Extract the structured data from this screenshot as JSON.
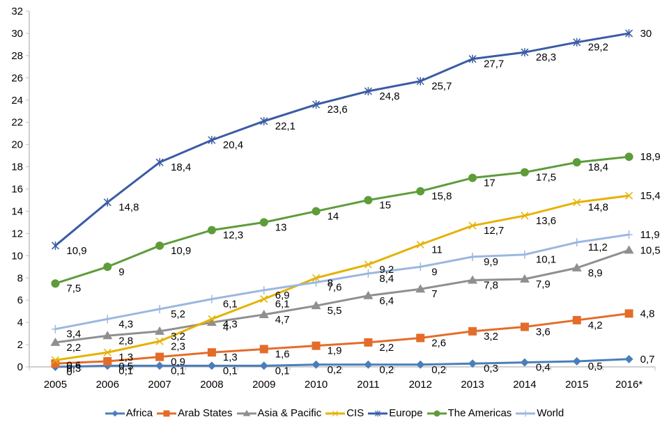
{
  "chart_data": {
    "type": "line",
    "title": "",
    "xlabel": "",
    "ylabel": "",
    "x": [
      "2005",
      "2006",
      "2007",
      "2008",
      "2009",
      "2010",
      "2011",
      "2012",
      "2013",
      "2014",
      "2015",
      "2016*"
    ],
    "ylim": [
      0,
      32
    ],
    "yticks": [
      "0",
      "2",
      "4",
      "6",
      "8",
      "10",
      "12",
      "14",
      "16",
      "18",
      "20",
      "22",
      "24",
      "26",
      "28",
      "30",
      "32"
    ],
    "grid": false,
    "legend_position": "bottom",
    "series": [
      {
        "name": "Africa",
        "color": "#4a7ebb",
        "marker": "diamond",
        "values": [
          0,
          0.1,
          0.1,
          0.1,
          0.1,
          0.2,
          0.2,
          0.2,
          0.3,
          0.4,
          0.5,
          0.7
        ],
        "labels": [
          "0",
          "0,1",
          "0,1",
          "0,1",
          "0,1",
          "0,2",
          "0,2",
          "0,2",
          "0,3",
          "0,4",
          "0,5",
          "0,7"
        ]
      },
      {
        "name": "Arab States",
        "color": "#e46c29",
        "marker": "square",
        "values": [
          0.3,
          0.5,
          0.9,
          1.3,
          1.6,
          1.9,
          2.2,
          2.6,
          3.2,
          3.6,
          4.2,
          4.8
        ],
        "labels": [
          "0,3",
          "0,5",
          "0,9",
          "1,3",
          "1,6",
          "1,9",
          "2,2",
          "2,6",
          "3,2",
          "3,6",
          "4,2",
          "4,8"
        ]
      },
      {
        "name": "Asia & Pacific",
        "color": "#8f8f8f",
        "marker": "triangle",
        "values": [
          2.2,
          2.8,
          3.2,
          4,
          4.7,
          5.5,
          6.4,
          7,
          7.8,
          7.9,
          8.9,
          10.5
        ],
        "labels": [
          "2,2",
          "2,8",
          "3,2",
          "4",
          "4,7",
          "5,5",
          "6,4",
          "7",
          "7,8",
          "7,9",
          "8,9",
          "10,5"
        ]
      },
      {
        "name": "CIS",
        "color": "#e6b100",
        "marker": "x",
        "values": [
          0.6,
          1.3,
          2.3,
          4.3,
          6.1,
          8,
          9.2,
          11,
          12.7,
          13.6,
          14.8,
          15.4
        ],
        "labels": [
          "0,6",
          "1,3",
          "2,3",
          "4,3",
          "6,1",
          "8",
          "9,2",
          "11",
          "12,7",
          "13,6",
          "14,8",
          "15,4"
        ]
      },
      {
        "name": "Europe",
        "color": "#3a5ba5",
        "marker": "star",
        "values": [
          10.9,
          14.8,
          18.4,
          20.4,
          22.1,
          23.6,
          24.8,
          25.7,
          27.7,
          28.3,
          29.2,
          30
        ],
        "labels": [
          "10,9",
          "14,8",
          "18,4",
          "20,4",
          "22,1",
          "23,6",
          "24,8",
          "25,7",
          "27,7",
          "28,3",
          "29,2",
          "30"
        ]
      },
      {
        "name": "The Americas",
        "color": "#5e9c3a",
        "marker": "circle",
        "values": [
          7.5,
          9,
          10.9,
          12.3,
          13,
          14,
          15,
          15.8,
          17,
          17.5,
          18.4,
          18.9
        ],
        "labels": [
          "7,5",
          "9",
          "10,9",
          "12,3",
          "13",
          "14",
          "15",
          "15,8",
          "17",
          "17,5",
          "18,4",
          "18,9"
        ]
      },
      {
        "name": "World",
        "color": "#9bb7e0",
        "marker": "plus",
        "values": [
          3.4,
          4.3,
          5.2,
          6.1,
          6.9,
          7.6,
          8.4,
          9,
          9.9,
          10.1,
          11.2,
          11.9
        ],
        "labels": [
          "3,4",
          "4,3",
          "5,2",
          "6,1",
          "6,9",
          "7,6",
          "8,4",
          "9",
          "9,9",
          "10,1",
          "11,2",
          "11,9"
        ]
      }
    ]
  }
}
